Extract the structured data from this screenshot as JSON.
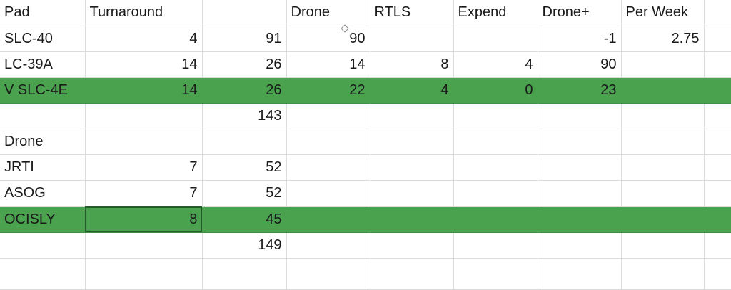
{
  "colors": {
    "highlight": "#4aa24f",
    "grid": "#dcdcdc"
  },
  "header": [
    "Pad",
    "Turnaround",
    "",
    "Drone",
    "RTLS",
    "Expend",
    "Drone+",
    "Per Week",
    ""
  ],
  "rows": [
    [
      "SLC-40",
      "4",
      "91",
      "90",
      "",
      "",
      "-1",
      "2.75",
      ""
    ],
    [
      "LC-39A",
      "14",
      "26",
      "14",
      "8",
      "4",
      "90",
      "",
      ""
    ],
    [
      "V SLC-4E",
      "14",
      "26",
      "22",
      "4",
      "0",
      "23",
      "",
      ""
    ],
    [
      "",
      "",
      "143",
      "",
      "",
      "",
      "",
      "",
      ""
    ],
    [
      "Drone",
      "",
      "",
      "",
      "",
      "",
      "",
      "",
      ""
    ],
    [
      "JRTI",
      "7",
      "52",
      "",
      "",
      "",
      "",
      "",
      ""
    ],
    [
      "ASOG",
      "7",
      "52",
      "",
      "",
      "",
      "",
      "",
      ""
    ],
    [
      "OCISLY",
      "8",
      "45",
      "",
      "",
      "",
      "",
      "",
      ""
    ],
    [
      "",
      "",
      "149",
      "",
      "",
      "",
      "",
      "",
      ""
    ],
    [
      "",
      "",
      "",
      "",
      "",
      "",
      "",
      "",
      ""
    ]
  ]
}
